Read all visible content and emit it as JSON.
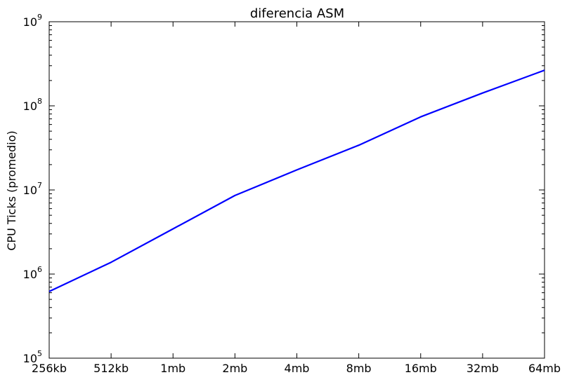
{
  "chart_data": {
    "type": "line",
    "title": "diferencia ASM",
    "xlabel": "",
    "ylabel": "CPU Ticks (promedio)",
    "categories": [
      "256kb",
      "512kb",
      "1mb",
      "2mb",
      "4mb",
      "8mb",
      "16mb",
      "32mb",
      "64mb"
    ],
    "y_scale": "log",
    "ylim": [
      100000,
      1000000000
    ],
    "y_ticks": [
      {
        "value": 100000,
        "base": "10",
        "exp": "5"
      },
      {
        "value": 1000000,
        "base": "10",
        "exp": "6"
      },
      {
        "value": 10000000,
        "base": "10",
        "exp": "7"
      },
      {
        "value": 100000000,
        "base": "10",
        "exp": "8"
      },
      {
        "value": 1000000000,
        "base": "10",
        "exp": "9"
      }
    ],
    "series": [
      {
        "color": "#0000ff",
        "values": [
          620000,
          1380000,
          3450000,
          8600000,
          17300000,
          34000000,
          74000000,
          142000000,
          265000000
        ]
      }
    ],
    "grid": false,
    "legend": "none"
  }
}
